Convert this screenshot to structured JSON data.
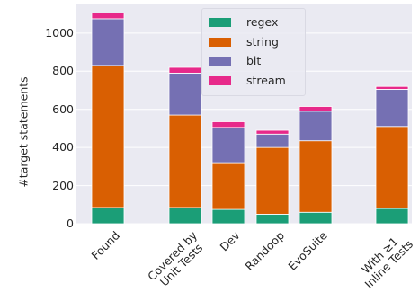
{
  "chart_data": {
    "type": "bar",
    "stacked": true,
    "categories": [
      "Found",
      "Covered by\nUnit Tests",
      "Dev",
      "Randoop",
      "EvoSuite",
      "With ≥1\nInline Tests"
    ],
    "series": [
      {
        "name": "regex",
        "color": "#1b9e77",
        "values": [
          85,
          85,
          75,
          50,
          60,
          80
        ]
      },
      {
        "name": "string",
        "color": "#d95f02",
        "values": [
          745,
          485,
          245,
          350,
          375,
          430
        ]
      },
      {
        "name": "bit",
        "color": "#7570b3",
        "values": [
          245,
          220,
          185,
          70,
          155,
          195
        ]
      },
      {
        "name": "stream",
        "color": "#e7298a",
        "values": [
          30,
          30,
          30,
          20,
          25,
          15
        ]
      }
    ],
    "title": "",
    "xlabel": "",
    "ylabel": "#target statements",
    "ylim": [
      0,
      1150
    ],
    "yticks": [
      0,
      200,
      400,
      600,
      800,
      1000
    ],
    "grid": true,
    "legend": "top-center",
    "background": "#eaeaf2",
    "gridcolor": "#ffffff"
  }
}
